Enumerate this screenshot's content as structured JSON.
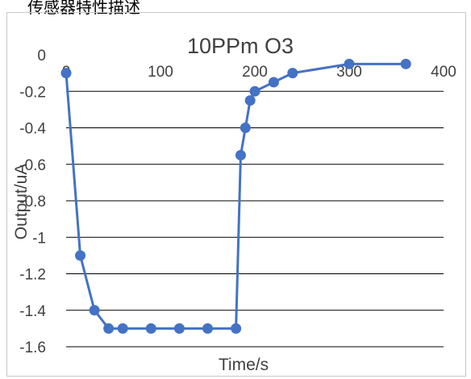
{
  "page": {
    "heading": "传感器特性描述"
  },
  "chart_data": {
    "type": "line",
    "title": "10PPm  O3",
    "xlabel": "Time/s",
    "ylabel": "Output/uA",
    "xlim": [
      0,
      400
    ],
    "ylim": [
      -1.6,
      0
    ],
    "x_ticks": [
      0,
      100,
      200,
      300,
      400
    ],
    "y_ticks": [
      0,
      -0.2,
      -0.4,
      -0.6,
      -0.8,
      -1,
      -1.2,
      -1.4,
      -1.6
    ],
    "x_tick_labels": [
      "0",
      "100",
      "200",
      "300",
      "400"
    ],
    "y_tick_labels": [
      "0",
      "-0.2",
      "-0.4",
      "-0.6",
      "-0.8",
      "-1",
      "-1.2",
      "-1.4",
      "-1.6"
    ],
    "grid": "horizontal",
    "legend": "none",
    "series": [
      {
        "x": [
          0,
          15,
          30,
          45,
          60,
          90,
          120,
          150,
          180,
          185,
          190,
          195,
          200,
          220,
          240,
          300,
          360
        ],
        "y": [
          -0.1,
          -1.1,
          -1.4,
          -1.5,
          -1.5,
          -1.5,
          -1.5,
          -1.5,
          -1.5,
          -0.55,
          -0.4,
          -0.25,
          -0.2,
          -0.15,
          -0.1,
          -0.05,
          -0.05
        ]
      }
    ],
    "colors": {
      "line": "#4472C4",
      "marker": "#4472C4",
      "grid": "#000000",
      "text": "#404040"
    }
  }
}
